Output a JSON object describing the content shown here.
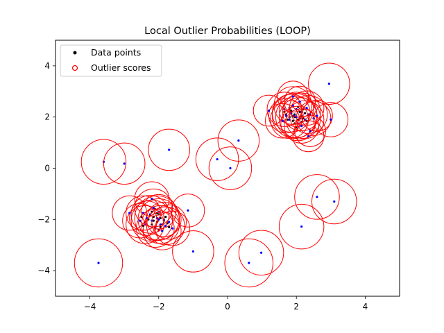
{
  "chart_data": {
    "type": "scatter",
    "title": "Local Outlier Probabilities (LOOP)",
    "xlabel": "",
    "ylabel": "",
    "xlim": [
      -5,
      5
    ],
    "ylim": [
      -5,
      5
    ],
    "xticks": [
      -4,
      -2,
      0,
      2,
      4
    ],
    "yticks": [
      -4,
      -2,
      0,
      2,
      4
    ],
    "grid": false,
    "legend": {
      "placement": "top-left",
      "entries": [
        "Data points",
        "Outlier scores"
      ]
    },
    "colors": {
      "data_points": "#000000",
      "outlier_circles": "#ff0000",
      "outlier_points": "#0000ff"
    },
    "series": [
      {
        "name": "Data points",
        "points": [
          [
            -2.3,
            -2.0
          ],
          [
            -2.15,
            -1.9
          ],
          [
            -2.05,
            -2.1
          ],
          [
            -1.95,
            -1.95
          ],
          [
            -2.2,
            -2.2
          ],
          [
            -2.0,
            -1.8
          ],
          [
            -1.85,
            -2.05
          ],
          [
            -2.25,
            -1.85
          ],
          [
            -2.1,
            -2.3
          ],
          [
            -1.9,
            -2.2
          ],
          [
            -2.4,
            -2.1
          ],
          [
            -2.05,
            -1.75
          ],
          [
            -1.8,
            -1.9
          ],
          [
            -2.15,
            -2.05
          ],
          [
            -2.35,
            -1.95
          ],
          [
            -1.75,
            -2.15
          ],
          [
            -2.0,
            -2.4
          ],
          [
            -2.2,
            -1.7
          ],
          [
            -1.95,
            -2.3
          ],
          [
            -2.45,
            -2.25
          ],
          [
            -2.1,
            -1.6
          ],
          [
            -1.7,
            -2.3
          ],
          [
            -2.5,
            -1.9
          ],
          [
            -2.0,
            -2.0
          ],
          [
            1.8,
            2.0
          ],
          [
            1.95,
            2.1
          ],
          [
            2.05,
            1.9
          ],
          [
            1.9,
            1.85
          ],
          [
            2.15,
            2.05
          ],
          [
            1.85,
            2.25
          ],
          [
            2.0,
            2.3
          ],
          [
            2.2,
            1.95
          ],
          [
            1.75,
            1.9
          ],
          [
            2.1,
            2.2
          ],
          [
            1.95,
            1.75
          ],
          [
            2.25,
            2.15
          ],
          [
            1.7,
            2.1
          ],
          [
            2.05,
            2.4
          ],
          [
            1.9,
            2.05
          ],
          [
            2.3,
            1.85
          ],
          [
            1.8,
            2.35
          ],
          [
            2.15,
            1.8
          ],
          [
            2.0,
            1.6
          ],
          [
            2.4,
            2.1
          ],
          [
            1.65,
            2.2
          ],
          [
            2.1,
            1.95
          ],
          [
            1.95,
            2.0
          ],
          [
            2.2,
            2.3
          ]
        ]
      },
      {
        "name": "Outlier scores",
        "points": [
          [
            -2.05,
            -1.95,
            0.65
          ],
          [
            -2.2,
            -2.05,
            0.6
          ],
          [
            -1.95,
            -2.2,
            0.55
          ],
          [
            -2.25,
            -1.8,
            0.55
          ],
          [
            -1.85,
            -2.0,
            0.5
          ],
          [
            -2.1,
            -2.35,
            0.55
          ],
          [
            -2.35,
            -1.95,
            0.5
          ],
          [
            -1.8,
            -2.25,
            0.55
          ],
          [
            -2.0,
            -1.7,
            0.5
          ],
          [
            -2.4,
            -2.2,
            0.55
          ],
          [
            -1.7,
            -2.1,
            0.5
          ],
          [
            -2.15,
            -1.55,
            0.55
          ],
          [
            -2.45,
            -1.75,
            0.5
          ],
          [
            -1.9,
            -2.45,
            0.55
          ],
          [
            -2.0,
            -2.0,
            0.6
          ],
          [
            -1.6,
            -2.35,
            0.5
          ],
          [
            -2.55,
            -2.05,
            0.5
          ],
          [
            -2.2,
            -1.2,
            0.5
          ],
          [
            -1.15,
            -1.65,
            0.48
          ],
          [
            -2.85,
            -1.75,
            0.5
          ],
          [
            1.95,
            2.05,
            0.65
          ],
          [
            2.1,
            1.95,
            0.6
          ],
          [
            1.85,
            2.15,
            0.55
          ],
          [
            2.15,
            2.2,
            0.55
          ],
          [
            1.8,
            1.9,
            0.55
          ],
          [
            2.0,
            2.3,
            0.5
          ],
          [
            2.25,
            1.9,
            0.55
          ],
          [
            1.7,
            2.05,
            0.5
          ],
          [
            2.05,
            1.75,
            0.5
          ],
          [
            1.9,
            2.45,
            0.55
          ],
          [
            2.35,
            2.1,
            0.55
          ],
          [
            1.65,
            2.3,
            0.5
          ],
          [
            2.15,
            1.65,
            0.5
          ],
          [
            2.3,
            2.35,
            0.5
          ],
          [
            2.5,
            1.95,
            0.5
          ],
          [
            1.6,
            1.85,
            0.5
          ],
          [
            2.0,
            2.0,
            0.6
          ],
          [
            1.9,
            2.8,
            0.45
          ],
          [
            2.1,
            2.6,
            0.45
          ],
          [
            1.2,
            2.25,
            0.45
          ],
          [
            2.4,
            1.45,
            0.45
          ],
          [
            2.35,
            1.25,
            0.45
          ],
          [
            2.6,
            2.05,
            0.45
          ],
          [
            -3.6,
            0.25,
            0.65
          ],
          [
            -3.0,
            0.18,
            0.6
          ],
          [
            -1.7,
            0.72,
            0.6
          ],
          [
            -0.3,
            0.35,
            0.62
          ],
          [
            0.32,
            1.08,
            0.6
          ],
          [
            0.08,
            0.0,
            0.62
          ],
          [
            2.95,
            3.3,
            0.6
          ],
          [
            3.0,
            1.9,
            0.5
          ],
          [
            2.6,
            -1.12,
            0.65
          ],
          [
            3.1,
            -1.3,
            0.65
          ],
          [
            2.15,
            -2.28,
            0.65
          ],
          [
            -1.0,
            -3.25,
            0.6
          ],
          [
            -3.75,
            -3.7,
            0.7
          ],
          [
            0.62,
            -3.7,
            0.7
          ],
          [
            0.98,
            -3.3,
            0.65
          ]
        ]
      }
    ]
  }
}
